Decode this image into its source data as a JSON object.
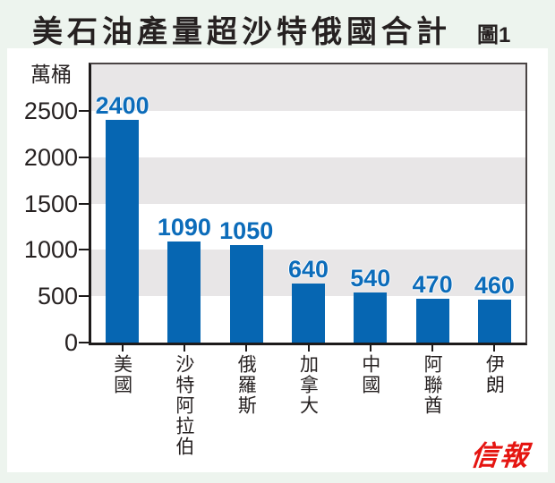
{
  "page": {
    "title": "美石油產量超沙特俄國合計",
    "figure_label": "圖1",
    "logo_text": "信報"
  },
  "chart_data": {
    "type": "bar",
    "title": "美石油產量超沙特俄國合計",
    "unit_label": "萬桶",
    "categories": [
      "美國",
      "沙特阿拉伯",
      "俄羅斯",
      "加拿大",
      "中國",
      "阿聯酋",
      "伊朗"
    ],
    "values": [
      2400,
      1090,
      1050,
      640,
      540,
      470,
      460
    ],
    "value_labels": [
      "2400",
      "1090",
      "1050",
      "640",
      "540",
      "470",
      "460"
    ],
    "ylim": [
      0,
      3000
    ],
    "yticks": [
      0,
      500,
      1000,
      1500,
      2000,
      2500
    ],
    "grid": "alternating-horizontal-bands-every-500",
    "legend": "none",
    "colors": {
      "bar": "#0666b2",
      "value_label": "#0c6cba",
      "band_gray": "#e8e6e7",
      "band_white": "#ffffff",
      "page_background": "#edf4ee",
      "panel_background": "#ffffff",
      "text": "#262121",
      "logo_red": "#e51511"
    }
  }
}
